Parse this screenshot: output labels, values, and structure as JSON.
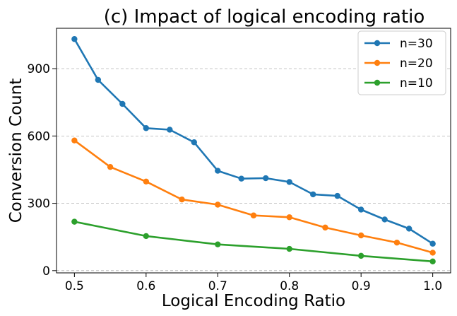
{
  "chart_data": {
    "type": "line",
    "title": "(c) Impact of logical encoding ratio",
    "xlabel": "Logical Encoding Ratio",
    "ylabel": "Conversion Count",
    "xlim": [
      0.475,
      1.025
    ],
    "ylim": [
      -10,
      1080
    ],
    "xticks": [
      0.5,
      0.6,
      0.7,
      0.8,
      0.9,
      1.0
    ],
    "xtick_labels": [
      "0.5",
      "0.6",
      "0.7",
      "0.8",
      "0.9",
      "1.0"
    ],
    "yticks": [
      0,
      300,
      600,
      900
    ],
    "ytick_labels": [
      "0",
      "300",
      "600",
      "900"
    ],
    "grid": "horizontal dashed",
    "legend_position": "top-right",
    "series": [
      {
        "name": "n=30",
        "color": "#1f77b4",
        "x": [
          0.5,
          0.533,
          0.567,
          0.6,
          0.633,
          0.667,
          0.7,
          0.733,
          0.767,
          0.8,
          0.833,
          0.867,
          0.9,
          0.933,
          0.967,
          1.0
        ],
        "y": [
          1032,
          850,
          743,
          635,
          628,
          572,
          445,
          410,
          412,
          395,
          340,
          333,
          272,
          228,
          187,
          120
        ]
      },
      {
        "name": "n=20",
        "color": "#ff7f0e",
        "x": [
          0.5,
          0.55,
          0.6,
          0.65,
          0.7,
          0.75,
          0.8,
          0.85,
          0.9,
          0.95,
          1.0
        ],
        "y": [
          580,
          462,
          397,
          317,
          294,
          246,
          238,
          192,
          157,
          125,
          80
        ]
      },
      {
        "name": "n=10",
        "color": "#2ca02c",
        "x": [
          0.5,
          0.6,
          0.7,
          0.8,
          0.9,
          1.0
        ],
        "y": [
          218,
          154,
          117,
          97,
          66,
          41
        ]
      }
    ]
  }
}
